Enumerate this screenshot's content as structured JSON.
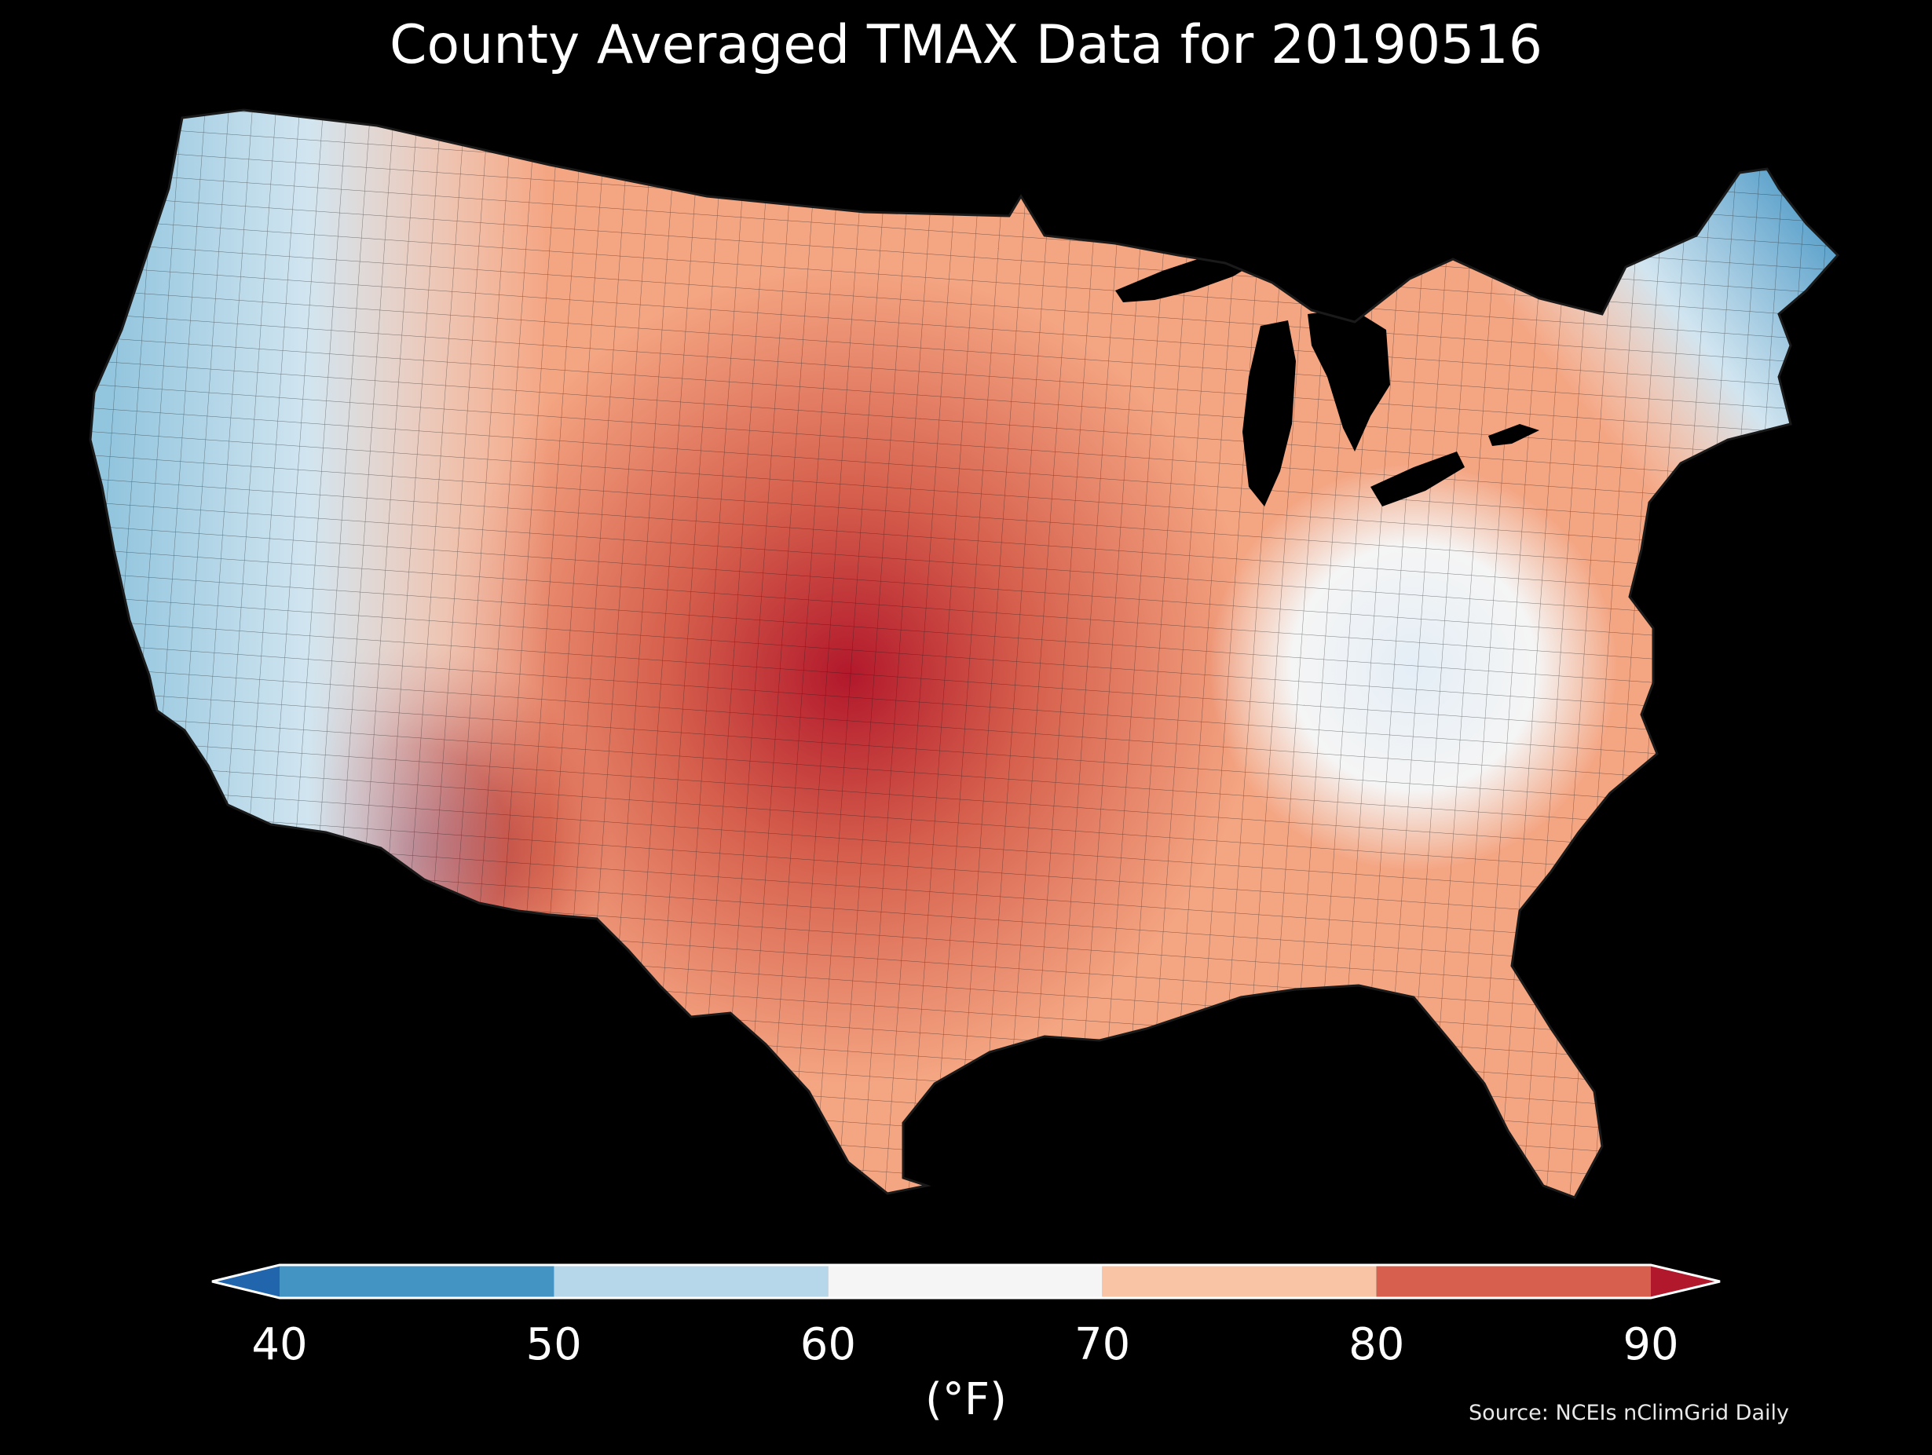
{
  "title": "County Averaged TMAX Data for 20190516",
  "colorbar": {
    "bins": [
      {
        "from": 40,
        "to": 50,
        "color": "#4393c3"
      },
      {
        "from": 50,
        "to": 60,
        "color": "#b6d6e9"
      },
      {
        "from": 60,
        "to": 70,
        "color": "#f5f5f5"
      },
      {
        "from": 70,
        "to": 80,
        "color": "#f9c3a6"
      },
      {
        "from": 80,
        "to": 90,
        "color": "#d6604d"
      }
    ],
    "under_color": "#2166ac",
    "over_color": "#b2182b",
    "ticks": [
      "40",
      "50",
      "60",
      "70",
      "80",
      "90"
    ],
    "unit": "(°F)"
  },
  "source": "Source: NCEIs nClimGrid Daily",
  "colors": {
    "background": "#000000",
    "text": "#ffffff",
    "water": "#000000",
    "border": "#1a1a1a"
  }
}
